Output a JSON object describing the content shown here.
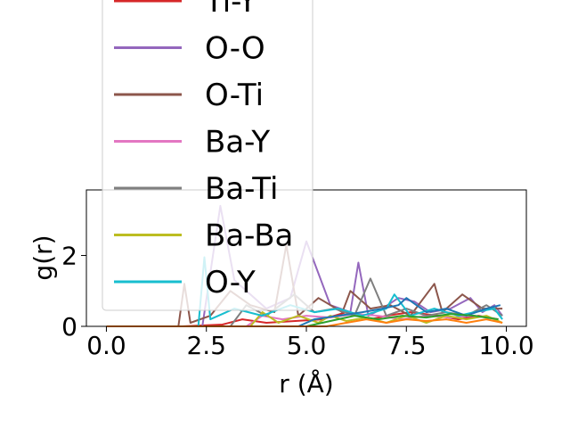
{
  "chart_data": {
    "type": "line",
    "xlabel": "r (Å)",
    "ylabel": "g(r)",
    "xlim": [
      -0.5,
      10.5
    ],
    "ylim": [
      0,
      3.85
    ],
    "xticks": [
      "0.0",
      "2.5",
      "5.0",
      "7.5",
      "10.0"
    ],
    "xtick_values": [
      0,
      2.5,
      5,
      7.5,
      10
    ],
    "yticks": [
      "0",
      "2"
    ],
    "ytick_values": [
      0,
      2
    ],
    "grid": false,
    "legend_position": "upper-left, overflowing above axes",
    "series": [
      {
        "name": "Ti-Y",
        "color": "#d62728",
        "legend_visible": true,
        "x": [
          0,
          1.9,
          2.9,
          3.4,
          4.0,
          5.4,
          6.0,
          6.3,
          6.6,
          7.0,
          7.6,
          8.3,
          8.8,
          9.3,
          9.8
        ],
        "y": [
          0,
          0,
          0.05,
          0.2,
          0.1,
          0.2,
          0.4,
          0.3,
          0.2,
          0.3,
          0.4,
          0.3,
          0.2,
          0.3,
          0.2
        ]
      },
      {
        "name": "O-O",
        "color": "#9467bd",
        "legend_visible": true,
        "x": [
          0,
          2.4,
          2.85,
          3.2,
          4.0,
          4.6,
          5.0,
          5.6,
          6.1,
          6.3,
          6.55,
          6.9,
          7.3,
          7.7,
          8.1,
          8.6,
          9.1,
          9.4,
          9.7,
          9.9
        ],
        "y": [
          0,
          0,
          3.4,
          1.3,
          0.5,
          0.8,
          2.4,
          0.6,
          0.4,
          1.8,
          0.3,
          0.5,
          0.8,
          0.7,
          0.4,
          0.5,
          0.8,
          0.4,
          0.6,
          0.3
        ]
      },
      {
        "name": "O-Ti",
        "color": "#8c564b",
        "legend_visible": true,
        "x": [
          0,
          1.8,
          1.95,
          2.1,
          2.6,
          3.1,
          3.6,
          4.2,
          4.5,
          4.8,
          5.3,
          5.9,
          6.1,
          6.6,
          7.1,
          7.6,
          8.2,
          8.4,
          8.9,
          9.4,
          9.9
        ],
        "y": [
          0,
          0,
          1.2,
          0.1,
          0.3,
          1.0,
          0.6,
          0.4,
          2.3,
          0.3,
          0.8,
          0.4,
          1.0,
          0.5,
          0.6,
          0.3,
          1.2,
          0.4,
          0.9,
          0.5,
          0.5
        ]
      },
      {
        "name": "Ba-Y",
        "color": "#e377c2",
        "legend_visible": true,
        "x": [
          0,
          3.5,
          3.9,
          4.4,
          5.0,
          5.6,
          6.2,
          6.8,
          7.4,
          8.0,
          8.6,
          9.2,
          9.8
        ],
        "y": [
          0,
          0,
          0.3,
          0.2,
          0.3,
          0.25,
          0.35,
          0.3,
          0.2,
          0.3,
          0.25,
          0.3,
          0.2
        ]
      },
      {
        "name": "Ba-Ti",
        "color": "#7f7f7f",
        "legend_visible": true,
        "x": [
          0,
          3.1,
          3.5,
          4.0,
          4.7,
          5.2,
          5.7,
          6.2,
          6.6,
          7.0,
          7.5,
          8.0,
          8.5,
          9.0,
          9.5,
          9.9
        ],
        "y": [
          0,
          0,
          0.6,
          0.3,
          0.9,
          0.4,
          0.5,
          0.3,
          1.35,
          0.3,
          0.5,
          0.3,
          0.4,
          0.3,
          0.6,
          0.3
        ]
      },
      {
        "name": "Ba-Ba",
        "color": "#bcbd22",
        "legend_visible": true,
        "x": [
          0,
          3.6,
          3.9,
          4.3,
          4.8,
          5.3,
          5.6,
          6.0,
          6.5,
          7.0,
          7.5,
          8.0,
          8.5,
          9.0,
          9.5,
          9.9
        ],
        "y": [
          0,
          0,
          0.4,
          0.1,
          0.3,
          0.1,
          0.3,
          0.15,
          0.25,
          0.1,
          0.3,
          0.1,
          0.3,
          0.2,
          0.3,
          0.1
        ]
      },
      {
        "name": "O-Y",
        "color": "#17becf",
        "legend_visible": true,
        "x": [
          0,
          2.3,
          2.45,
          2.6,
          3.2,
          3.9,
          4.6,
          5.2,
          5.8,
          6.4,
          7.0,
          7.2,
          7.6,
          8.2,
          8.8,
          9.2,
          9.7,
          9.9
        ],
        "y": [
          0,
          0,
          1.95,
          0.2,
          0.5,
          0.3,
          0.6,
          0.4,
          0.5,
          0.3,
          0.5,
          0.9,
          0.3,
          0.5,
          0.3,
          0.4,
          0.5,
          0.2
        ]
      },
      {
        "name": "",
        "color": "#1f77b4",
        "legend_visible": false,
        "x": [
          0,
          4.8,
          5.2,
          5.8,
          6.4,
          6.9,
          7.3,
          7.5,
          8.0,
          8.5,
          9.0,
          9.5,
          9.85
        ],
        "y": [
          0,
          0,
          0.2,
          0.3,
          0.4,
          0.5,
          0.6,
          0.8,
          0.4,
          0.5,
          0.3,
          0.5,
          0.6
        ]
      },
      {
        "name": "",
        "color": "#2ca02c",
        "legend_visible": false,
        "x": [
          0,
          5.0,
          5.6,
          6.2,
          6.8,
          7.4,
          8.0,
          8.6,
          9.2,
          9.8
        ],
        "y": [
          0,
          0,
          0.15,
          0.3,
          0.2,
          0.3,
          0.25,
          0.35,
          0.3,
          0.2
        ]
      },
      {
        "name": "",
        "color": "#ff7f0e",
        "legend_visible": false,
        "x": [
          0,
          5.5,
          6.0,
          6.5,
          7.0,
          7.5,
          8.0,
          8.5,
          9.0,
          9.5,
          9.9
        ],
        "y": [
          0,
          0,
          0.1,
          0.2,
          0.1,
          0.2,
          0.15,
          0.2,
          0.1,
          0.2,
          0.1
        ]
      }
    ]
  }
}
